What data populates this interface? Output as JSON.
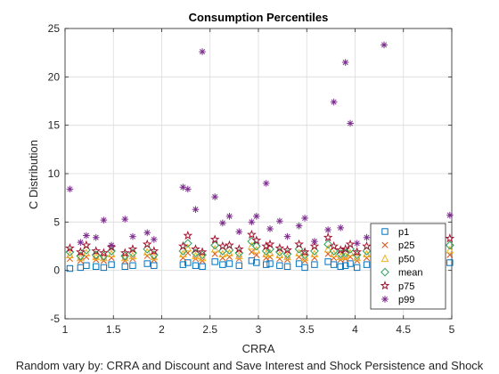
{
  "chart_data": {
    "type": "scatter",
    "title": "Consumption Percentiles",
    "xlabel": "CRRA",
    "ylabel": "C Distribution",
    "footer": "Random vary by: CRRA and Discount and Save Interest and Shock Persistence and Shock",
    "xlim": [
      1,
      5
    ],
    "ylim": [
      -5,
      25
    ],
    "xticks": [
      "1",
      "1.5",
      "2",
      "2.5",
      "3",
      "3.5",
      "4",
      "4.5",
      "5"
    ],
    "yticks": [
      "-5",
      "0",
      "5",
      "10",
      "15",
      "20",
      "25"
    ],
    "grid": true,
    "legend_position": "bottom-right",
    "x": [
      1.05,
      1.16,
      1.22,
      1.32,
      1.4,
      1.48,
      1.62,
      1.7,
      1.85,
      1.92,
      2.22,
      2.27,
      2.35,
      2.42,
      2.55,
      2.63,
      2.7,
      2.8,
      2.93,
      2.98,
      3.08,
      3.12,
      3.22,
      3.3,
      3.42,
      3.48,
      3.58,
      3.72,
      3.78,
      3.85,
      3.9,
      3.95,
      4.02,
      4.12,
      4.22,
      4.3,
      4.4,
      4.55,
      4.62,
      4.75,
      4.88,
      4.98
    ],
    "series": [
      {
        "name": "p1",
        "color": "#0072BD",
        "marker": "square",
        "values": [
          0.2,
          0.3,
          0.5,
          0.4,
          0.3,
          0.6,
          0.4,
          0.5,
          0.7,
          0.5,
          0.6,
          0.8,
          0.5,
          0.4,
          0.9,
          0.6,
          0.7,
          0.5,
          1.0,
          0.8,
          0.6,
          0.7,
          0.5,
          0.4,
          0.7,
          0.3,
          0.6,
          0.9,
          0.6,
          0.4,
          0.5,
          0.7,
          0.3,
          0.6,
          0.8,
          0.5,
          0.6,
          0.4,
          0.9,
          0.5,
          0.7,
          0.8
        ]
      },
      {
        "name": "p25",
        "color": "#D95319",
        "marker": "x",
        "values": [
          1.2,
          1.0,
          1.4,
          1.1,
          1.0,
          1.3,
          1.0,
          1.2,
          1.5,
          1.1,
          1.3,
          1.8,
          1.2,
          1.0,
          1.7,
          1.3,
          1.4,
          1.2,
          1.9,
          1.6,
          1.3,
          1.4,
          1.2,
          1.1,
          1.4,
          1.0,
          1.3,
          1.7,
          1.3,
          1.1,
          1.2,
          1.4,
          1.0,
          1.3,
          1.6,
          1.2,
          1.3,
          1.1,
          1.7,
          1.2,
          1.4,
          1.6
        ]
      },
      {
        "name": "p50",
        "color": "#EDB120",
        "marker": "triangle",
        "values": [
          1.6,
          1.3,
          1.8,
          1.4,
          1.3,
          1.7,
          1.3,
          1.5,
          1.9,
          1.4,
          1.7,
          2.3,
          1.5,
          1.3,
          2.2,
          1.7,
          1.8,
          1.5,
          2.5,
          2.1,
          1.7,
          1.8,
          1.6,
          1.4,
          1.8,
          1.3,
          1.7,
          2.2,
          1.7,
          1.4,
          1.5,
          1.8,
          1.3,
          1.7,
          2.1,
          1.5,
          1.7,
          1.4,
          2.2,
          1.6,
          1.8,
          2.1
        ]
      },
      {
        "name": "mean",
        "color": "#2E9E5B",
        "marker": "diamond",
        "values": [
          1.9,
          1.5,
          2.1,
          1.6,
          1.5,
          2.0,
          1.5,
          1.8,
          2.2,
          1.6,
          2.0,
          2.8,
          1.8,
          1.6,
          2.6,
          2.0,
          2.1,
          1.8,
          3.0,
          2.5,
          2.0,
          2.2,
          1.9,
          1.7,
          2.2,
          1.6,
          2.0,
          2.7,
          2.0,
          1.7,
          1.8,
          2.2,
          1.6,
          2.0,
          2.5,
          1.8,
          2.0,
          1.7,
          2.7,
          1.9,
          2.2,
          2.6
        ]
      },
      {
        "name": "p75",
        "color": "#A2142F",
        "marker": "star",
        "values": [
          2.3,
          1.9,
          2.6,
          2.0,
          1.8,
          2.4,
          1.8,
          2.2,
          2.7,
          2.0,
          2.5,
          3.6,
          2.2,
          1.9,
          3.2,
          2.5,
          2.6,
          2.2,
          3.7,
          3.1,
          2.5,
          2.7,
          2.3,
          2.1,
          2.7,
          1.9,
          2.5,
          3.4,
          2.5,
          2.1,
          2.2,
          2.7,
          1.9,
          2.5,
          3.1,
          2.2,
          2.5,
          2.1,
          3.4,
          2.3,
          2.7,
          3.3
        ]
      },
      {
        "name": "p99",
        "color": "#7E2F8E",
        "marker": "asterisk",
        "values": [
          8.4,
          2.9,
          3.6,
          3.4,
          5.2,
          2.6,
          5.3,
          3.5,
          3.9,
          3.2,
          8.6,
          8.4,
          6.3,
          22.6,
          7.6,
          4.9,
          5.6,
          4.0,
          5.0,
          5.6,
          9.0,
          4.3,
          5.1,
          3.5,
          4.6,
          5.4,
          3.0,
          4.2,
          17.4,
          4.4,
          21.5,
          15.2,
          2.8,
          3.4,
          4.2,
          23.3,
          2.6,
          3.0,
          3.7,
          2.8,
          3.5,
          5.7
        ]
      }
    ]
  }
}
